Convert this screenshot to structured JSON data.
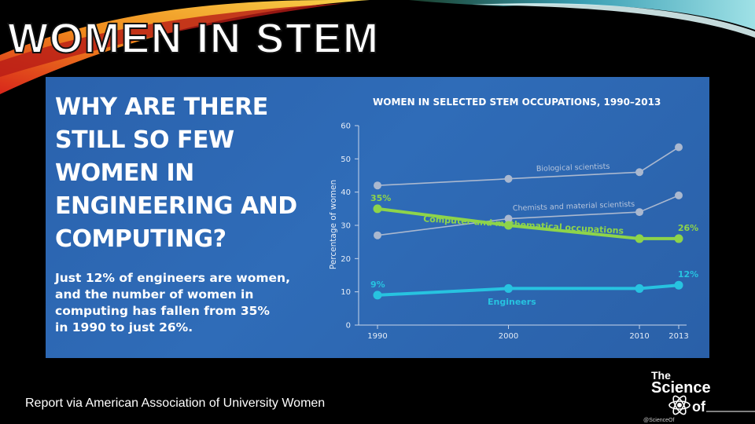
{
  "slide": {
    "title": "WOMEN IN STEM",
    "caption": "Report via American Association of University Women"
  },
  "infographic": {
    "headline": "WHY ARE THERE\nSTILL SO FEW\nWOMEN IN\nENGINEERING AND\nCOMPUTING?",
    "summary": "Just 12% of engineers are women,\nand the number of women in\ncomputing has fallen from 35%\nin 1990 to just 26%."
  },
  "logo": {
    "line1": "The",
    "line2": "Science",
    "line3": "of",
    "handle": "@ScienceOf"
  },
  "chart_data": {
    "type": "line",
    "title": "WOMEN IN SELECTED STEM OCCUPATIONS, 1990–2013",
    "ylabel": "Percentage of women",
    "xlabel": "",
    "x": [
      1990,
      2000,
      2010,
      2013
    ],
    "xticks": [
      "1990",
      "2000",
      "2010",
      "2013"
    ],
    "ylim": [
      0,
      60
    ],
    "yticks": [
      "0",
      "10",
      "20",
      "30",
      "40",
      "50",
      "60"
    ],
    "grid": false,
    "series": [
      {
        "name": "Biological scientists",
        "values": [
          42,
          44,
          46,
          53.5
        ],
        "color": "#aab8cf",
        "highlight": false
      },
      {
        "name": "Chemists and material scientists",
        "values": [
          27,
          32,
          34,
          39
        ],
        "color": "#aab8cf",
        "highlight": false
      },
      {
        "name": "Computer and mathematical occupations",
        "values": [
          35,
          30,
          26,
          26
        ],
        "color": "#8ed44a",
        "highlight": true,
        "start_label": "35%",
        "end_label": "26%"
      },
      {
        "name": "Engineers",
        "values": [
          9,
          11,
          11,
          12
        ],
        "color": "#27c3e0",
        "highlight": true,
        "start_label": "9%",
        "end_label": "12%"
      }
    ]
  }
}
